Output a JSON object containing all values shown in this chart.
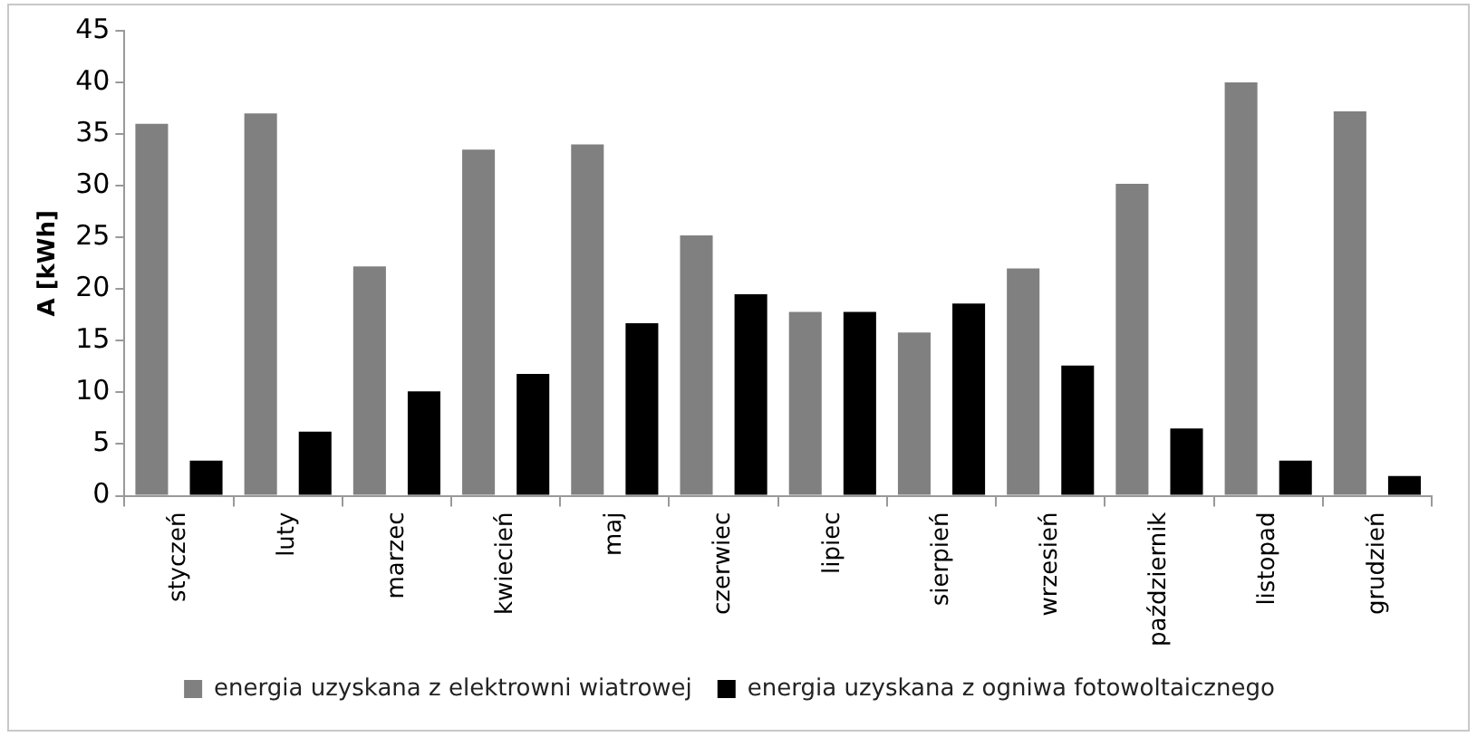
{
  "chart_data": {
    "type": "bar",
    "ylabel": "A [kWh]",
    "categories": [
      "styczeń",
      "luty",
      "marzec",
      "kwiecień",
      "maj",
      "czerwiec",
      "lipiec",
      "sierpień",
      "wrzesień",
      "październik",
      "listopad",
      "grudzień"
    ],
    "series": [
      {
        "name": "energia uzyskana z elektrowni wiatrowej",
        "color": "#808080",
        "values": [
          36,
          37,
          22.2,
          33.5,
          34,
          25.2,
          17.8,
          15.8,
          22,
          30.2,
          40,
          37.2
        ]
      },
      {
        "name": "energia uzyskana z ogniwa fotowoltaicznego",
        "color": "#000000",
        "values": [
          3.4,
          6.2,
          10.1,
          11.8,
          16.7,
          19.5,
          17.8,
          18.6,
          12.6,
          6.5,
          3.4,
          1.9
        ]
      }
    ],
    "ylim": [
      0,
      45
    ],
    "yticks": [
      0,
      5,
      10,
      15,
      20,
      25,
      30,
      35,
      40,
      45
    ],
    "grid": false,
    "legend": "bottom"
  }
}
